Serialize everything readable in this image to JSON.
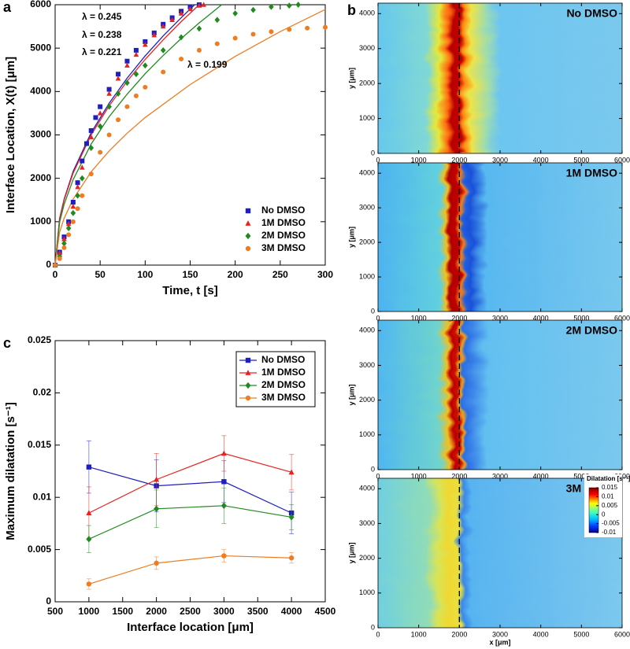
{
  "chart_data": [
    {
      "type": "scatter",
      "panel": "a",
      "xlabel": "Time, t [s]",
      "ylabel": "Interface Location, X(t) [μm]",
      "xlim": [
        0,
        300
      ],
      "xticks": [
        0,
        50,
        100,
        150,
        200,
        250,
        300
      ],
      "ylim": [
        0,
        6000
      ],
      "yticks": [
        0,
        1000,
        2000,
        3000,
        4000,
        5000,
        6000
      ],
      "legend": "lower right",
      "series": [
        {
          "name": "No DMSO",
          "color": "#1f1fbf",
          "marker": "square",
          "x": [
            0,
            5,
            10,
            15,
            20,
            25,
            30,
            35,
            40,
            45,
            50,
            60,
            70,
            80,
            90,
            100,
            110,
            120,
            130,
            140,
            150,
            160
          ],
          "values": [
            0,
            300,
            650,
            1000,
            1450,
            1900,
            2400,
            2800,
            3100,
            3400,
            3650,
            4050,
            4400,
            4700,
            4950,
            5150,
            5350,
            5550,
            5700,
            5850,
            5950,
            6000
          ]
        },
        {
          "name": "1M DMSO",
          "color": "#e8231f",
          "marker": "triangle",
          "x": [
            0,
            5,
            10,
            15,
            20,
            25,
            30,
            40,
            50,
            60,
            70,
            80,
            90,
            100,
            110,
            120,
            130,
            140,
            150,
            160,
            165
          ],
          "values": [
            0,
            280,
            600,
            950,
            1350,
            1800,
            2250,
            2950,
            3500,
            3950,
            4300,
            4600,
            4850,
            5080,
            5300,
            5500,
            5650,
            5800,
            5900,
            5980,
            6000
          ]
        },
        {
          "name": "2M DMSO",
          "color": "#1f8a1f",
          "marker": "diamond",
          "x": [
            0,
            5,
            10,
            15,
            20,
            25,
            30,
            40,
            50,
            60,
            70,
            80,
            90,
            100,
            120,
            140,
            160,
            180,
            200,
            220,
            240,
            260,
            270
          ],
          "values": [
            0,
            200,
            500,
            850,
            1200,
            1600,
            2000,
            2700,
            3200,
            3650,
            3950,
            4200,
            4400,
            4600,
            4950,
            5250,
            5450,
            5650,
            5800,
            5880,
            5950,
            5980,
            6000
          ]
        },
        {
          "name": "3M DMSO",
          "color": "#ee7d22",
          "marker": "circle",
          "x": [
            0,
            5,
            10,
            15,
            20,
            25,
            30,
            40,
            50,
            60,
            70,
            80,
            90,
            100,
            120,
            140,
            160,
            180,
            200,
            220,
            240,
            260,
            280,
            300
          ],
          "values": [
            0,
            150,
            400,
            700,
            1000,
            1300,
            1600,
            2100,
            2600,
            3000,
            3350,
            3650,
            3900,
            4100,
            4450,
            4750,
            4950,
            5100,
            5230,
            5320,
            5380,
            5430,
            5460,
            5480
          ]
        }
      ],
      "fits": [
        {
          "label": "λ = 0.245",
          "color": "#1f1fbf",
          "x": [
            0,
            5,
            10,
            20,
            40,
            60,
            80,
            100,
            120,
            140,
            155
          ],
          "values": [
            0,
            1080,
            1520,
            2160,
            3050,
            3730,
            4310,
            4820,
            5280,
            5700,
            6000
          ]
        },
        {
          "label": "λ = 0.238",
          "color": "#e8231f",
          "x": [
            0,
            5,
            10,
            20,
            40,
            60,
            80,
            100,
            120,
            140,
            160
          ],
          "values": [
            0,
            1060,
            1500,
            2120,
            3000,
            3670,
            4240,
            4740,
            5190,
            5610,
            6000
          ]
        },
        {
          "label": "λ = 0.221",
          "color": "#1f8a1f",
          "x": [
            0,
            5,
            10,
            20,
            40,
            60,
            80,
            100,
            120,
            140,
            160,
            185
          ],
          "values": [
            0,
            990,
            1400,
            1970,
            2790,
            3420,
            3940,
            4410,
            4830,
            5220,
            5580,
            6000
          ]
        },
        {
          "label": "λ = 0.199",
          "color": "#ee7d22",
          "x": [
            0,
            5,
            10,
            20,
            40,
            60,
            80,
            100,
            150,
            200,
            250,
            300
          ],
          "values": [
            0,
            760,
            1080,
            1520,
            2150,
            2630,
            3040,
            3400,
            4160,
            4810,
            5380,
            5890
          ]
        }
      ]
    },
    {
      "type": "heatmap",
      "panel": "b",
      "title": "No DMSO",
      "ylabel": "y [μm]",
      "xlim": [
        0,
        6000
      ],
      "xticks": [
        0,
        1000,
        2000,
        3000,
        4000,
        5000,
        6000
      ],
      "ylim": [
        0,
        4300
      ],
      "yticks": [
        0,
        1000,
        2000,
        3000,
        4000
      ],
      "vline": 2000
    },
    {
      "type": "heatmap",
      "title": "1M DMSO",
      "ylabel": "y [μm]",
      "xlim": [
        0,
        6000
      ],
      "xticks": [
        0,
        1000,
        2000,
        3000,
        4000,
        5000,
        6000
      ],
      "ylim": [
        0,
        4300
      ],
      "yticks": [
        0,
        1000,
        2000,
        3000,
        4000
      ],
      "vline": 2000
    },
    {
      "type": "heatmap",
      "title": "2M DMSO",
      "ylabel": "y [μm]",
      "xlim": [
        0,
        6000
      ],
      "xticks": [
        0,
        1000,
        2000,
        3000,
        4000,
        5000,
        6000
      ],
      "ylim": [
        0,
        4300
      ],
      "yticks": [
        0,
        1000,
        2000,
        3000,
        4000
      ],
      "vline": 2000
    },
    {
      "type": "heatmap",
      "title": "3M DMSO",
      "ylabel": "y [μm]",
      "xlabel": "x [μm]",
      "xlim": [
        0,
        6000
      ],
      "xticks": [
        0,
        1000,
        2000,
        3000,
        4000,
        5000,
        6000
      ],
      "ylim": [
        0,
        4300
      ],
      "yticks": [
        0,
        1000,
        2000,
        3000,
        4000
      ],
      "vline": 2000,
      "colorbar": {
        "label": "Dilatation [s⁻¹]",
        "lim": [
          -0.01,
          0.015
        ],
        "ticks": [
          0.015,
          0.01,
          0.005,
          0,
          -0.005,
          -0.01
        ]
      }
    },
    {
      "type": "line",
      "panel": "c",
      "xlabel": "Interface location [μm]",
      "ylabel": "Maximum dilatation [s⁻¹]",
      "xlim": [
        500,
        4500
      ],
      "xticks": [
        500,
        1000,
        1500,
        2000,
        2500,
        3000,
        3500,
        4000,
        4500
      ],
      "ylim": [
        0,
        0.025
      ],
      "yticks": [
        0,
        0.005,
        0.01,
        0.015,
        0.02,
        0.025
      ],
      "legend": "upper right",
      "x": [
        1000,
        2000,
        3000,
        4000
      ],
      "series": [
        {
          "name": "No DMSO",
          "color": "#1f1fbf",
          "marker": "square",
          "values": [
            0.0129,
            0.0111,
            0.0115,
            0.0085
          ],
          "errors": [
            0.0025,
            0.0025,
            0.002,
            0.002
          ]
        },
        {
          "name": "1M DMSO",
          "color": "#e8231f",
          "marker": "triangle",
          "values": [
            0.0085,
            0.0117,
            0.0142,
            0.0124
          ],
          "errors": [
            0.0025,
            0.0025,
            0.0017,
            0.0017
          ]
        },
        {
          "name": "2M DMSO",
          "color": "#1f8a1f",
          "marker": "diamond",
          "values": [
            0.006,
            0.0089,
            0.0092,
            0.0081
          ],
          "errors": [
            0.0013,
            0.0018,
            0.0017,
            0.0012
          ]
        },
        {
          "name": "3M DMSO",
          "color": "#ee7d22",
          "marker": "circle",
          "values": [
            0.0017,
            0.0037,
            0.0044,
            0.0042
          ],
          "errors": [
            0.0005,
            0.0006,
            0.0006,
            0.0005
          ]
        }
      ]
    }
  ]
}
